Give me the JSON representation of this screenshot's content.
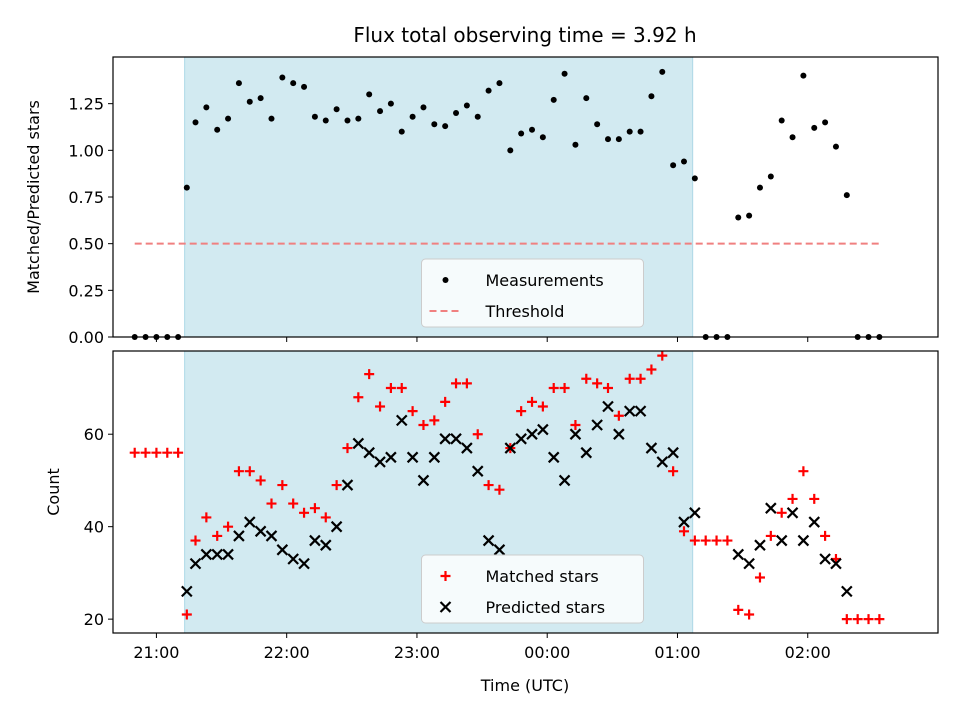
{
  "chart_data": [
    {
      "type": "scatter",
      "title": "Flux total observing time = 3.92 h",
      "xlabel": "",
      "ylabel": "Matched/Predicted stars",
      "ylim": [
        0,
        1.5
      ],
      "yticks": [
        "0.00",
        "0.25",
        "0.50",
        "0.75",
        "1.00",
        "1.25"
      ],
      "ytick_values": [
        0,
        0.25,
        0.5,
        0.75,
        1.0,
        1.25
      ],
      "xlim": [
        "20:40",
        "03:00"
      ],
      "shaded_span": [
        "21:13",
        "01:07"
      ],
      "legend": "lower center",
      "series": [
        {
          "name": "Measurements",
          "marker": "dot",
          "color": "#000000",
          "points": [
            [
              "20:50",
              0
            ],
            [
              "20:55",
              0
            ],
            [
              "21:00",
              0
            ],
            [
              "21:05",
              0
            ],
            [
              "21:10",
              0
            ],
            [
              "21:14",
              0.8
            ],
            [
              "21:18",
              1.15
            ],
            [
              "21:23",
              1.23
            ],
            [
              "21:28",
              1.11
            ],
            [
              "21:33",
              1.17
            ],
            [
              "21:38",
              1.36
            ],
            [
              "21:43",
              1.26
            ],
            [
              "21:48",
              1.28
            ],
            [
              "21:53",
              1.17
            ],
            [
              "21:58",
              1.39
            ],
            [
              "22:03",
              1.36
            ],
            [
              "22:08",
              1.34
            ],
            [
              "22:13",
              1.18
            ],
            [
              "22:18",
              1.16
            ],
            [
              "22:23",
              1.22
            ],
            [
              "22:28",
              1.16
            ],
            [
              "22:33",
              1.17
            ],
            [
              "22:38",
              1.3
            ],
            [
              "22:43",
              1.21
            ],
            [
              "22:48",
              1.25
            ],
            [
              "22:53",
              1.1
            ],
            [
              "22:58",
              1.18
            ],
            [
              "23:03",
              1.23
            ],
            [
              "23:08",
              1.14
            ],
            [
              "23:13",
              1.13
            ],
            [
              "23:18",
              1.2
            ],
            [
              "23:23",
              1.24
            ],
            [
              "23:28",
              1.18
            ],
            [
              "23:33",
              1.32
            ],
            [
              "23:38",
              1.36
            ],
            [
              "23:43",
              1.0
            ],
            [
              "23:48",
              1.09
            ],
            [
              "23:53",
              1.11
            ],
            [
              "23:58",
              1.07
            ],
            [
              "00:03",
              1.27
            ],
            [
              "00:08",
              1.41
            ],
            [
              "00:13",
              1.03
            ],
            [
              "00:18",
              1.28
            ],
            [
              "00:23",
              1.14
            ],
            [
              "00:28",
              1.06
            ],
            [
              "00:33",
              1.06
            ],
            [
              "00:38",
              1.1
            ],
            [
              "00:43",
              1.1
            ],
            [
              "00:48",
              1.29
            ],
            [
              "00:53",
              1.42
            ],
            [
              "00:58",
              0.92
            ],
            [
              "01:03",
              0.94
            ],
            [
              "01:08",
              0.85
            ],
            [
              "01:13",
              0
            ],
            [
              "01:18",
              0
            ],
            [
              "01:23",
              0
            ],
            [
              "01:28",
              0.64
            ],
            [
              "01:33",
              0.65
            ],
            [
              "01:38",
              0.8
            ],
            [
              "01:43",
              0.86
            ],
            [
              "01:48",
              1.16
            ],
            [
              "01:53",
              1.07
            ],
            [
              "01:58",
              1.4
            ],
            [
              "02:03",
              1.12
            ],
            [
              "02:08",
              1.15
            ],
            [
              "02:13",
              1.02
            ],
            [
              "02:18",
              0.76
            ],
            [
              "02:23",
              0
            ],
            [
              "02:28",
              0
            ],
            [
              "02:33",
              0
            ]
          ]
        },
        {
          "name": "Threshold",
          "marker": "dashed-line",
          "color": "#f08080",
          "points": [
            [
              "20:50",
              0.5
            ],
            [
              "02:33",
              0.5
            ]
          ]
        }
      ]
    },
    {
      "type": "scatter",
      "title": "",
      "xlabel": "Time (UTC)",
      "ylabel": "Count",
      "ylim": [
        17,
        78
      ],
      "yticks": [
        "20",
        "40",
        "60"
      ],
      "ytick_values": [
        20,
        40,
        60
      ],
      "xticks": [
        "21:00",
        "22:00",
        "23:00",
        "00:00",
        "01:00",
        "02:00"
      ],
      "xtick_values": [
        "21:00",
        "22:00",
        "23:00",
        "00:00",
        "01:00",
        "02:00"
      ],
      "xlim": [
        "20:40",
        "03:00"
      ],
      "shaded_span": [
        "21:13",
        "01:07"
      ],
      "legend": "lower center",
      "series": [
        {
          "name": "Matched stars",
          "marker": "plus",
          "color": "#ff0000",
          "points": [
            [
              "20:50",
              56
            ],
            [
              "20:55",
              56
            ],
            [
              "21:00",
              56
            ],
            [
              "21:05",
              56
            ],
            [
              "21:10",
              56
            ],
            [
              "21:14",
              21
            ],
            [
              "21:18",
              37
            ],
            [
              "21:23",
              42
            ],
            [
              "21:28",
              38
            ],
            [
              "21:33",
              40
            ],
            [
              "21:38",
              52
            ],
            [
              "21:43",
              52
            ],
            [
              "21:48",
              50
            ],
            [
              "21:53",
              45
            ],
            [
              "21:58",
              49
            ],
            [
              "22:03",
              45
            ],
            [
              "22:08",
              43
            ],
            [
              "22:13",
              44
            ],
            [
              "22:18",
              42
            ],
            [
              "22:23",
              49
            ],
            [
              "22:28",
              57
            ],
            [
              "22:33",
              68
            ],
            [
              "22:38",
              73
            ],
            [
              "22:43",
              66
            ],
            [
              "22:48",
              70
            ],
            [
              "22:53",
              70
            ],
            [
              "22:58",
              65
            ],
            [
              "23:03",
              62
            ],
            [
              "23:08",
              63
            ],
            [
              "23:13",
              67
            ],
            [
              "23:18",
              71
            ],
            [
              "23:23",
              71
            ],
            [
              "23:28",
              60
            ],
            [
              "23:33",
              49
            ],
            [
              "23:38",
              48
            ],
            [
              "23:43",
              57
            ],
            [
              "23:48",
              65
            ],
            [
              "23:53",
              67
            ],
            [
              "23:58",
              66
            ],
            [
              "00:03",
              70
            ],
            [
              "00:08",
              70
            ],
            [
              "00:13",
              62
            ],
            [
              "00:18",
              72
            ],
            [
              "00:23",
              71
            ],
            [
              "00:28",
              70
            ],
            [
              "00:33",
              64
            ],
            [
              "00:38",
              72
            ],
            [
              "00:43",
              72
            ],
            [
              "00:48",
              74
            ],
            [
              "00:53",
              77
            ],
            [
              "00:58",
              52
            ],
            [
              "01:03",
              39
            ],
            [
              "01:08",
              37
            ],
            [
              "01:13",
              37
            ],
            [
              "01:18",
              37
            ],
            [
              "01:23",
              37
            ],
            [
              "01:28",
              22
            ],
            [
              "01:33",
              21
            ],
            [
              "01:38",
              29
            ],
            [
              "01:43",
              38
            ],
            [
              "01:48",
              43
            ],
            [
              "01:53",
              46
            ],
            [
              "01:58",
              52
            ],
            [
              "02:03",
              46
            ],
            [
              "02:08",
              38
            ],
            [
              "02:13",
              33
            ],
            [
              "02:18",
              20
            ],
            [
              "02:23",
              20
            ],
            [
              "02:28",
              20
            ],
            [
              "02:33",
              20
            ]
          ]
        },
        {
          "name": "Predicted stars",
          "marker": "x",
          "color": "#000000",
          "points": [
            [
              "21:14",
              26
            ],
            [
              "21:18",
              32
            ],
            [
              "21:23",
              34
            ],
            [
              "21:28",
              34
            ],
            [
              "21:33",
              34
            ],
            [
              "21:38",
              38
            ],
            [
              "21:43",
              41
            ],
            [
              "21:48",
              39
            ],
            [
              "21:53",
              38
            ],
            [
              "21:58",
              35
            ],
            [
              "22:03",
              33
            ],
            [
              "22:08",
              32
            ],
            [
              "22:13",
              37
            ],
            [
              "22:18",
              36
            ],
            [
              "22:23",
              40
            ],
            [
              "22:28",
              49
            ],
            [
              "22:33",
              58
            ],
            [
              "22:38",
              56
            ],
            [
              "22:43",
              54
            ],
            [
              "22:48",
              55
            ],
            [
              "22:53",
              63
            ],
            [
              "22:58",
              55
            ],
            [
              "23:03",
              50
            ],
            [
              "23:08",
              55
            ],
            [
              "23:13",
              59
            ],
            [
              "23:18",
              59
            ],
            [
              "23:23",
              57
            ],
            [
              "23:28",
              52
            ],
            [
              "23:33",
              37
            ],
            [
              "23:38",
              35
            ],
            [
              "23:43",
              57
            ],
            [
              "23:48",
              59
            ],
            [
              "23:53",
              60
            ],
            [
              "23:58",
              61
            ],
            [
              "00:03",
              55
            ],
            [
              "00:08",
              50
            ],
            [
              "00:13",
              60
            ],
            [
              "00:18",
              56
            ],
            [
              "00:23",
              62
            ],
            [
              "00:28",
              66
            ],
            [
              "00:33",
              60
            ],
            [
              "00:38",
              65
            ],
            [
              "00:43",
              65
            ],
            [
              "00:48",
              57
            ],
            [
              "00:53",
              54
            ],
            [
              "00:58",
              56
            ],
            [
              "01:03",
              41
            ],
            [
              "01:08",
              43
            ],
            [
              "01:28",
              34
            ],
            [
              "01:33",
              32
            ],
            [
              "01:38",
              36
            ],
            [
              "01:43",
              44
            ],
            [
              "01:48",
              37
            ],
            [
              "01:53",
              43
            ],
            [
              "01:58",
              37
            ],
            [
              "02:03",
              41
            ],
            [
              "02:08",
              33
            ],
            [
              "02:13",
              32
            ],
            [
              "02:18",
              26
            ]
          ]
        }
      ]
    }
  ],
  "colors": {
    "shaded_region": "#add8e6",
    "matched": "#ff0000",
    "predicted": "#000000",
    "threshold": "#f08080"
  }
}
